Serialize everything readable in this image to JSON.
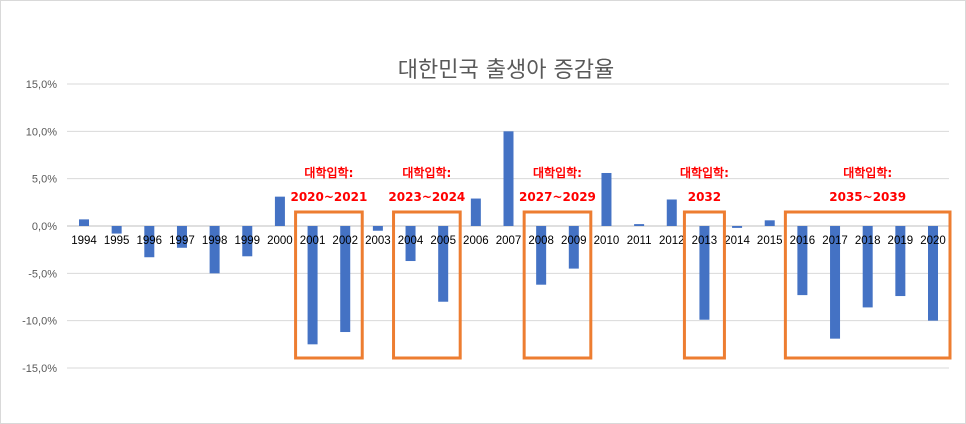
{
  "chart_data": {
    "type": "bar",
    "title": "대한민국 출생아 증감율",
    "xlabel": "",
    "ylabel": "",
    "ylim": [
      -15,
      15
    ],
    "yticks": [
      15,
      10,
      5,
      0,
      -5,
      -10,
      -15
    ],
    "ytick_labels": [
      "15,0%",
      "10,0%",
      "5,0%",
      "0,0%",
      "-5,0%",
      "-10,0%",
      "-15,0%"
    ],
    "grid": true,
    "legend": "none",
    "bar_color": "#4472c4",
    "categories": [
      "1994",
      "1995",
      "1996",
      "1997",
      "1998",
      "1999",
      "2000",
      "2001",
      "2002",
      "2003",
      "2004",
      "2005",
      "2006",
      "2007",
      "2008",
      "2009",
      "2010",
      "2011",
      "2012",
      "2013",
      "2014",
      "2015",
      "2016",
      "2017",
      "2018",
      "2019",
      "2020"
    ],
    "values": [
      0.7,
      -0.8,
      -3.3,
      -2.3,
      -5.0,
      -3.2,
      3.1,
      -12.5,
      -11.2,
      -0.5,
      -3.7,
      -8.0,
      2.9,
      10.0,
      -6.2,
      -4.5,
      5.6,
      0.2,
      2.8,
      -9.9,
      -0.2,
      0.6,
      -7.3,
      -11.9,
      -8.6,
      -7.4,
      -10.0
    ],
    "annotations": [
      {
        "line1": "대학입학:",
        "line2": "2020~2021",
        "from": "2001",
        "to": "2002",
        "color": "#ff0000",
        "box_color": "#ed7d31"
      },
      {
        "line1": "대학입학:",
        "line2": "2023~2024",
        "from": "2004",
        "to": "2005",
        "color": "#ff0000",
        "box_color": "#ed7d31"
      },
      {
        "line1": "대학입학:",
        "line2": "2027~2029",
        "from": "2008",
        "to": "2009",
        "color": "#ff0000",
        "box_color": "#ed7d31"
      },
      {
        "line1": "대학입학:",
        "line2": "2032",
        "from": "2013",
        "to": "2013",
        "color": "#ff0000",
        "box_color": "#ed7d31"
      },
      {
        "line1": "대학입학:",
        "line2": "2035~2039",
        "from": "2016",
        "to": "2020",
        "color": "#ff0000",
        "box_color": "#ed7d31"
      }
    ]
  }
}
